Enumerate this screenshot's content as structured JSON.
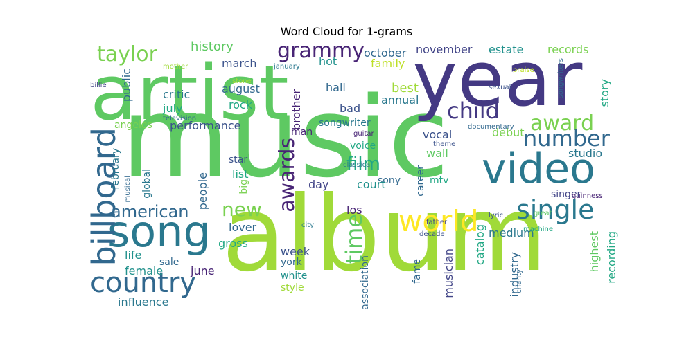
{
  "title": "Word Cloud for 1-grams",
  "words": [
    {
      "text": "music",
      "color": "#5ec962"
    },
    {
      "text": "album",
      "color": "#a0da39"
    },
    {
      "text": "year",
      "color": "#443983"
    },
    {
      "text": "artist",
      "color": "#5ec962"
    },
    {
      "text": "video",
      "color": "#2a788e"
    },
    {
      "text": "song",
      "color": "#2a788e"
    },
    {
      "text": "country",
      "color": "#31688e"
    },
    {
      "text": "billboard",
      "color": "#31688e"
    },
    {
      "text": "world",
      "color": "#fde725"
    },
    {
      "text": "award",
      "color": "#7ad151"
    },
    {
      "text": "child",
      "color": "#443983"
    },
    {
      "text": "single",
      "color": "#2a788e"
    },
    {
      "text": "number",
      "color": "#31688e"
    },
    {
      "text": "awards",
      "color": "#482475"
    },
    {
      "text": "time",
      "color": "#5ec962"
    },
    {
      "text": "grammy",
      "color": "#482475"
    },
    {
      "text": "taylor",
      "color": "#7ad151"
    },
    {
      "text": "american",
      "color": "#31688e"
    },
    {
      "text": "film",
      "color": "#22a884"
    },
    {
      "text": "new",
      "color": "#7ad151"
    },
    {
      "text": "history",
      "color": "#5ec962"
    },
    {
      "text": "october",
      "color": "#31688e"
    },
    {
      "text": "november",
      "color": "#414487"
    },
    {
      "text": "estate",
      "color": "#21918c"
    },
    {
      "text": "records",
      "color": "#7ad151"
    },
    {
      "text": "family",
      "color": "#bddf26"
    },
    {
      "text": "march",
      "color": "#3b528b"
    },
    {
      "text": "hot",
      "color": "#21918c"
    },
    {
      "text": "public",
      "color": "#31688e"
    },
    {
      "text": "critic",
      "color": "#2a788e"
    },
    {
      "text": "august",
      "color": "#31688e"
    },
    {
      "text": "july",
      "color": "#22a884"
    },
    {
      "text": "hall",
      "color": "#31688e"
    },
    {
      "text": "best",
      "color": "#a0da39"
    },
    {
      "text": "annual",
      "color": "#2a788e"
    },
    {
      "text": "story",
      "color": "#22a884"
    },
    {
      "text": "rock",
      "color": "#22a884"
    },
    {
      "text": "brother",
      "color": "#482475"
    },
    {
      "text": "bad",
      "color": "#3b528b"
    },
    {
      "text": "performance",
      "color": "#3b528b"
    },
    {
      "text": "angeles",
      "color": "#7ad151"
    },
    {
      "text": "man",
      "color": "#482475"
    },
    {
      "text": "songwriter",
      "color": "#2a788e"
    },
    {
      "text": "vocal",
      "color": "#3b528b"
    },
    {
      "text": "debut",
      "color": "#7ad151"
    },
    {
      "text": "studio",
      "color": "#2a788e"
    },
    {
      "text": "star",
      "color": "#3b528b"
    },
    {
      "text": "voice",
      "color": "#22a884"
    },
    {
      "text": "wall",
      "color": "#5ec962"
    },
    {
      "text": "list",
      "color": "#22a884"
    },
    {
      "text": "sony",
      "color": "#31688e"
    },
    {
      "text": "court",
      "color": "#21918c"
    },
    {
      "text": "day",
      "color": "#414487"
    },
    {
      "text": "february",
      "color": "#2a788e"
    },
    {
      "text": "global",
      "color": "#2a788e"
    },
    {
      "text": "people",
      "color": "#31688e"
    },
    {
      "text": "big",
      "color": "#7ad151"
    },
    {
      "text": "career",
      "color": "#31688e"
    },
    {
      "text": "mtv",
      "color": "#22a884"
    },
    {
      "text": "singer",
      "color": "#414487"
    },
    {
      "text": "los",
      "color": "#482475"
    },
    {
      "text": "lover",
      "color": "#31688e"
    },
    {
      "text": "medium",
      "color": "#2a788e"
    },
    {
      "text": "life",
      "color": "#21918c"
    },
    {
      "text": "gross",
      "color": "#22a884"
    },
    {
      "text": "week",
      "color": "#3b528b"
    },
    {
      "text": "female",
      "color": "#21918c"
    },
    {
      "text": "sale",
      "color": "#31688e"
    },
    {
      "text": "june",
      "color": "#482475"
    },
    {
      "text": "york",
      "color": "#31688e"
    },
    {
      "text": "white",
      "color": "#21918c"
    },
    {
      "text": "style",
      "color": "#a0da39"
    },
    {
      "text": "influence",
      "color": "#2a788e"
    },
    {
      "text": "association",
      "color": "#31688e"
    },
    {
      "text": "fame",
      "color": "#31688e"
    },
    {
      "text": "musician",
      "color": "#414487"
    },
    {
      "text": "catalog",
      "color": "#22a884"
    },
    {
      "text": "industry",
      "color": "#31688e"
    },
    {
      "text": "highest",
      "color": "#5ec962"
    },
    {
      "text": "recording",
      "color": "#22a884"
    },
    {
      "text": "mother",
      "color": "#a0da39"
    },
    {
      "text": "january",
      "color": "#2a788e"
    },
    {
      "text": "stone",
      "color": "#a0da39"
    },
    {
      "text": "billie",
      "color": "#414487"
    },
    {
      "text": "television",
      "color": "#31688e"
    },
    {
      "text": "praise",
      "color": "#bddf26"
    },
    {
      "text": "sexual",
      "color": "#3b528b"
    },
    {
      "text": "songwriters",
      "color": "#31688e"
    },
    {
      "text": "documentary",
      "color": "#31688e"
    },
    {
      "text": "guitar",
      "color": "#482475"
    },
    {
      "text": "theme",
      "color": "#3b528b"
    },
    {
      "text": "father",
      "color": "#414487"
    },
    {
      "text": "great",
      "color": "#5ec962"
    },
    {
      "text": "guinness",
      "color": "#482475"
    },
    {
      "text": "lyric",
      "color": "#3b528b"
    },
    {
      "text": "machine",
      "color": "#22a884"
    },
    {
      "text": "city",
      "color": "#2a788e"
    },
    {
      "text": "decade",
      "color": "#3b528b"
    },
    {
      "text": "charity",
      "color": "#31688e"
    },
    {
      "text": "musical",
      "color": "#31688e"
    },
    {
      "text": "classical",
      "color": "#2a788e"
    }
  ]
}
